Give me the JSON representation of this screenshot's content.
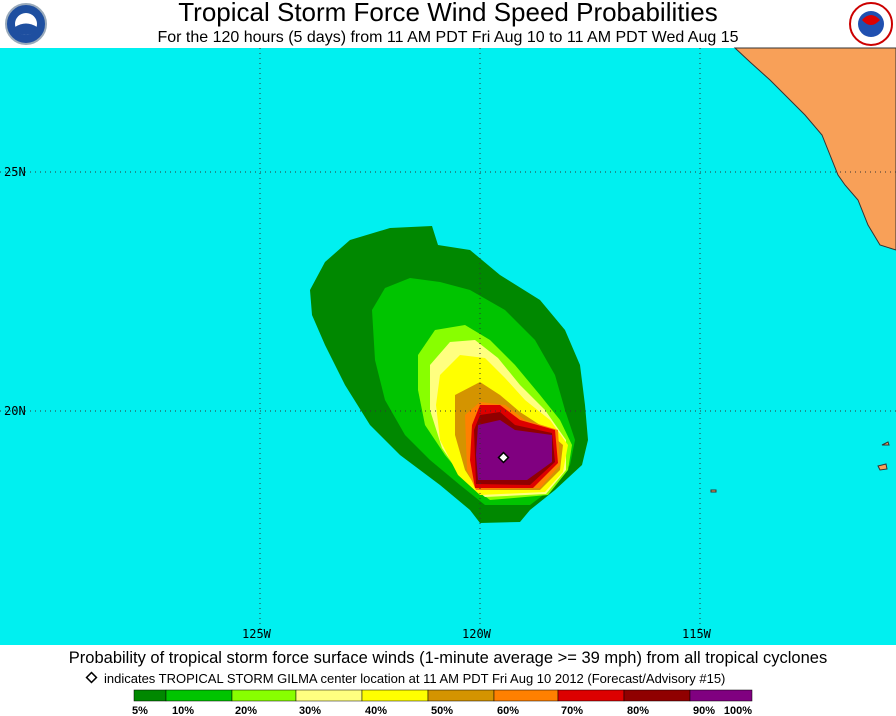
{
  "header": {
    "title": "Tropical Storm Force Wind Speed Probabilities",
    "subtitle": "For the 120 hours (5 days) from 11 AM PDT Fri Aug 10 to 11 AM PDT Wed Aug 15"
  },
  "map": {
    "lat_labels": [
      "25N",
      "20N"
    ],
    "lon_labels": [
      "125W",
      "120W",
      "115W"
    ]
  },
  "footer": {
    "caption": "Probability of tropical storm force surface winds (1-minute average >= 39 mph) from all tropical cyclones",
    "note": "indicates TROPICAL STORM GILMA center location at 11 AM PDT Fri Aug 10 2012 (Forecast/Advisory #15)",
    "legend": [
      "5%",
      "10%",
      "20%",
      "30%",
      "40%",
      "50%",
      "60%",
      "70%",
      "80%",
      "90%",
      "100%"
    ]
  }
}
